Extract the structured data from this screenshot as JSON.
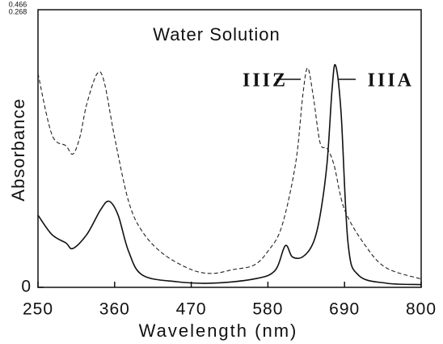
{
  "chart_data": {
    "type": "line",
    "title": "Water Solution",
    "xlabel": "Wavelength (nm)",
    "ylabel": "Absorbance",
    "scale_labels": [
      "0.466",
      "0.268"
    ],
    "xlim": [
      250,
      800
    ],
    "xticks": [
      250,
      360,
      470,
      580,
      690,
      800
    ],
    "ylim": [
      0,
      1
    ],
    "yticks": [
      0
    ],
    "series": [
      {
        "name": "IIIZ",
        "color": "#222",
        "dash": true,
        "x": [
          250,
          270,
          290,
          300,
          310,
          320,
          335,
          345,
          360,
          380,
          400,
          430,
          470,
          500,
          530,
          560,
          580,
          600,
          620,
          630,
          637,
          645,
          655,
          665,
          675,
          690,
          720,
          750,
          800
        ],
        "values": [
          0.77,
          0.55,
          0.51,
          0.48,
          0.54,
          0.66,
          0.77,
          0.74,
          0.54,
          0.31,
          0.2,
          0.12,
          0.064,
          0.05,
          0.064,
          0.08,
          0.13,
          0.22,
          0.45,
          0.69,
          0.79,
          0.69,
          0.52,
          0.5,
          0.44,
          0.28,
          0.15,
          0.07,
          0.03
        ]
      },
      {
        "name": "IIIA",
        "color": "#111",
        "dash": false,
        "x": [
          250,
          270,
          290,
          300,
          320,
          340,
          352,
          365,
          380,
          400,
          450,
          500,
          560,
          590,
          605,
          615,
          630,
          645,
          655,
          665,
          672,
          677,
          685,
          695,
          710,
          750,
          800
        ],
        "values": [
          0.26,
          0.19,
          0.16,
          0.14,
          0.19,
          0.28,
          0.31,
          0.26,
          0.13,
          0.044,
          0.02,
          0.015,
          0.03,
          0.06,
          0.15,
          0.11,
          0.11,
          0.16,
          0.26,
          0.45,
          0.71,
          0.8,
          0.63,
          0.16,
          0.044,
          0.015,
          0.01
        ]
      }
    ]
  }
}
